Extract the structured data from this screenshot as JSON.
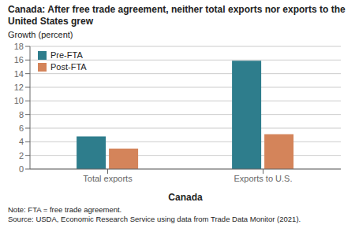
{
  "chart_data": {
    "type": "bar",
    "title": "Canada: After free trade agreement, neither total exports nor exports to the United States grew",
    "y_label": "Growth (percent)",
    "x_label": "Canada",
    "categories": [
      "Total exports",
      "Exports to U.S."
    ],
    "series": [
      {
        "name": "Pre-FTA",
        "color": "#2e7d8c",
        "values": [
          4.8,
          15.9
        ]
      },
      {
        "name": "Post-FTA",
        "color": "#d4845a",
        "values": [
          3.0,
          5.1
        ]
      }
    ],
    "ylim": [
      0,
      18
    ],
    "yticks": [
      0,
      2,
      4,
      6,
      8,
      10,
      12,
      14,
      16,
      18
    ],
    "grid": true,
    "legend": "upper left",
    "annotations": [
      "Note: FTA = free trade agreement.",
      "Source: USDA, Economic Research Service using data from Trade Data Monitor (2021)."
    ]
  }
}
